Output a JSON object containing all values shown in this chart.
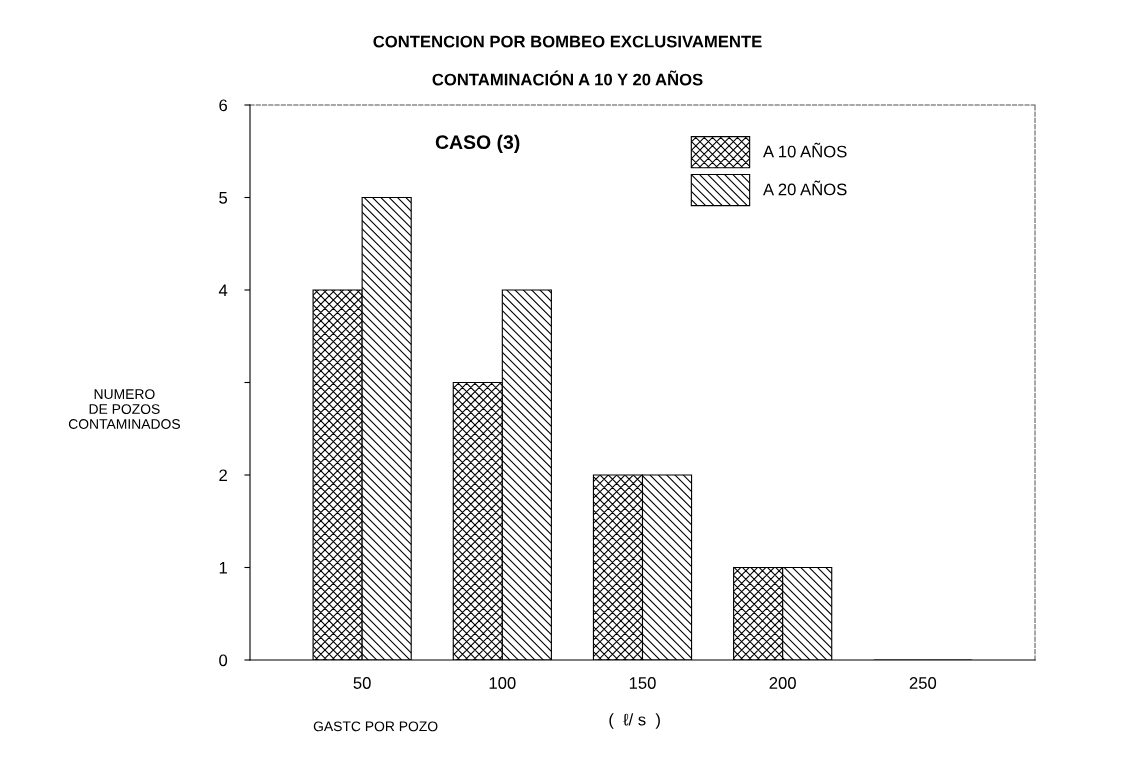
{
  "chart_data": {
    "type": "bar",
    "title": "CONTENCION POR BOMBEO EXCLUSIVAMENTE",
    "subtitle": "CONTAMINACIÓN A 10 Y 20 AÑOS",
    "xlabel": "GASTC POR POZO",
    "ylabel": "NUMERO\nDE POZOS\nCONTAMINADOS",
    "annotations": [
      "CASO (3)",
      "(  ℓ/ s  )"
    ],
    "categories": [
      "50",
      "100",
      "150",
      "200",
      "250"
    ],
    "series": [
      {
        "name": "A 10 AÑOS",
        "color": "#000000",
        "values": [
          4,
          3,
          2,
          1,
          0
        ]
      },
      {
        "name": "A 20 AÑOS",
        "color": "#000000",
        "values": [
          5,
          4,
          2,
          1,
          0
        ]
      }
    ],
    "ylim": [
      0,
      6
    ],
    "yticks": [
      0,
      1,
      2,
      {
        "value": 3,
        "label": null
      },
      4,
      5,
      6
    ],
    "legend": "top right"
  }
}
